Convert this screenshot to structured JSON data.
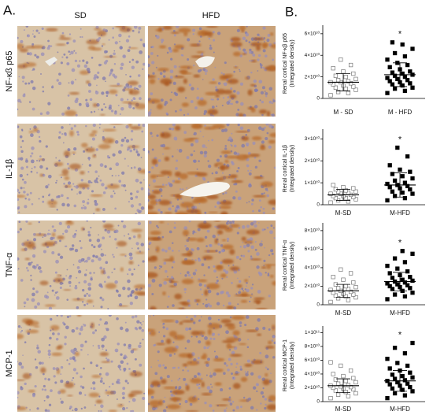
{
  "figure": {
    "panel_a": {
      "label": "A.",
      "columns": [
        "SD",
        "HFD"
      ],
      "rows": [
        "NF-κß p65",
        "IL-1β",
        "TNF-α",
        "MCP-1"
      ]
    },
    "panel_b_label": "B."
  },
  "chart_data": [
    {
      "type": "dot",
      "ylabel": [
        "Renal cortical NF-κβ p65",
        "(Integrated density)"
      ],
      "annotation": "*",
      "ylim": [
        0,
        65000000000.0
      ],
      "yticks": [
        0,
        {
          "value": 20000000000.0,
          "label": "2×10¹⁰"
        },
        {
          "value": 40000000000.0,
          "label": "4×10¹⁰"
        },
        {
          "value": 60000000000.0,
          "label": "6×10¹⁰"
        }
      ],
      "groups": [
        {
          "name": "M - SD",
          "style": "open",
          "mean": 15000000000.0,
          "sd": 8000000000.0,
          "values": [
            3000000000.0,
            5000000000.0,
            6000000000.0,
            8000000000.0,
            9000000000.0,
            10000000000.0,
            11000000000.0,
            12000000000.0,
            13000000000.0,
            14000000000.0,
            15000000000.0,
            15000000000.0,
            16000000000.0,
            17000000000.0,
            18000000000.0,
            20000000000.0,
            21000000000.0,
            23000000000.0,
            25000000000.0,
            28000000000.0,
            31000000000.0,
            36000000000.0
          ]
        },
        {
          "name": "M - HFD",
          "style": "filled",
          "mean": 22000000000.0,
          "sd": 11000000000.0,
          "values": [
            5000000000.0,
            7000000000.0,
            9000000000.0,
            10000000000.0,
            12000000000.0,
            13000000000.0,
            14000000000.0,
            15000000000.0,
            16000000000.0,
            17000000000.0,
            18000000000.0,
            19000000000.0,
            20000000000.0,
            21000000000.0,
            22000000000.0,
            23000000000.0,
            24000000000.0,
            25000000000.0,
            27000000000.0,
            29000000000.0,
            31000000000.0,
            33000000000.0,
            36000000000.0,
            39000000000.0,
            42000000000.0,
            46000000000.0,
            50000000000.0,
            52000000000.0
          ]
        }
      ]
    },
    {
      "type": "dot",
      "ylabel": [
        "Renal cortical IL-1β",
        "(Integrated density)"
      ],
      "annotation": "*",
      "ylim": [
        0,
        33000000000.0
      ],
      "yticks": [
        0,
        {
          "value": 10000000000.0,
          "label": "1×10¹⁰"
        },
        {
          "value": 20000000000.0,
          "label": "2×10¹⁰"
        },
        {
          "value": 30000000000.0,
          "label": "3×10¹⁰"
        }
      ],
      "groups": [
        {
          "name": "M-SD",
          "style": "open",
          "mean": 4500000000.0,
          "sd": 2500000000.0,
          "values": [
            1000000000.0,
            1500000000.0,
            2000000000.0,
            2500000000.0,
            3000000000.0,
            3000000000.0,
            3500000000.0,
            4000000000.0,
            4000000000.0,
            4500000000.0,
            5000000000.0,
            5000000000.0,
            5500000000.0,
            6000000000.0,
            6000000000.0,
            6500000000.0,
            7000000000.0,
            7500000000.0,
            8000000000.0,
            9000000000.0
          ]
        },
        {
          "name": "M-HFD",
          "style": "filled",
          "mean": 9000000000.0,
          "sd": 5500000000.0,
          "values": [
            2000000000.0,
            3000000000.0,
            4000000000.0,
            5000000000.0,
            5500000000.0,
            6000000000.0,
            7000000000.0,
            7500000000.0,
            8000000000.0,
            8500000000.0,
            9000000000.0,
            9500000000.0,
            10000000000.0,
            11000000000.0,
            12000000000.0,
            13000000000.0,
            14000000000.0,
            15000000000.0,
            16000000000.0,
            18000000000.0,
            22000000000.0,
            26000000000.0
          ]
        }
      ]
    },
    {
      "type": "dot",
      "ylabel": [
        "Renal cortical TNF-α",
        "(Integrated density)"
      ],
      "annotation": "*",
      "ylim": [
        0,
        85000000000.0
      ],
      "yticks": [
        0,
        {
          "value": 20000000000.0,
          "label": "2×10¹⁰"
        },
        {
          "value": 40000000000.0,
          "label": "4×10¹⁰"
        },
        {
          "value": 60000000000.0,
          "label": "6×10¹⁰"
        },
        {
          "value": 80000000000.0,
          "label": "8×10¹⁰"
        }
      ],
      "groups": [
        {
          "name": "M-SD",
          "style": "open",
          "mean": 15000000000.0,
          "sd": 7000000000.0,
          "values": [
            3000000000.0,
            5000000000.0,
            7000000000.0,
            8000000000.0,
            9000000000.0,
            10000000000.0,
            11000000000.0,
            12000000000.0,
            13000000000.0,
            14000000000.0,
            15000000000.0,
            16000000000.0,
            17000000000.0,
            18000000000.0,
            19000000000.0,
            20000000000.0,
            22000000000.0,
            24000000000.0,
            27000000000.0,
            30000000000.0,
            34000000000.0,
            38000000000.0
          ]
        },
        {
          "name": "M-HFD",
          "style": "filled",
          "mean": 25000000000.0,
          "sd": 10000000000.0,
          "values": [
            6000000000.0,
            9000000000.0,
            11000000000.0,
            13000000000.0,
            15000000000.0,
            17000000000.0,
            18000000000.0,
            19000000000.0,
            20000000000.0,
            21000000000.0,
            22000000000.0,
            23000000000.0,
            24000000000.0,
            25000000000.0,
            26000000000.0,
            27000000000.0,
            29000000000.0,
            30000000000.0,
            32000000000.0,
            34000000000.0,
            36000000000.0,
            39000000000.0,
            42000000000.0,
            46000000000.0,
            50000000000.0,
            55000000000.0,
            58000000000.0
          ]
        }
      ]
    },
    {
      "type": "dot",
      "ylabel": [
        "Renal cortical MCP-1",
        "(Integrated density)"
      ],
      "annotation": "*",
      "ylim": [
        0,
        105000000000.0
      ],
      "yticks": [
        0,
        {
          "value": 20000000000.0,
          "label": "2×10¹⁰"
        },
        {
          "value": 40000000000.0,
          "label": "4×10¹⁰"
        },
        {
          "value": 60000000000.0,
          "label": "6×10¹⁰"
        },
        {
          "value": 80000000000.0,
          "label": "8×10¹⁰"
        },
        {
          "value": 100000000000.0,
          "label": "1×10¹¹"
        }
      ],
      "groups": [
        {
          "name": "M-SD",
          "style": "open",
          "mean": 23000000000.0,
          "sd": 10000000000.0,
          "values": [
            5000000000.0,
            8000000000.0,
            10000000000.0,
            12000000000.0,
            14000000000.0,
            16000000000.0,
            18000000000.0,
            19000000000.0,
            20000000000.0,
            21000000000.0,
            22000000000.0,
            23000000000.0,
            24000000000.0,
            26000000000.0,
            28000000000.0,
            30000000000.0,
            32000000000.0,
            34000000000.0,
            37000000000.0,
            40000000000.0,
            45000000000.0,
            52000000000.0,
            57000000000.0
          ]
        },
        {
          "name": "M-HFD",
          "style": "filled",
          "mean": 30000000000.0,
          "sd": 15000000000.0,
          "values": [
            5000000000.0,
            9000000000.0,
            12000000000.0,
            15000000000.0,
            17000000000.0,
            19000000000.0,
            21000000000.0,
            23000000000.0,
            25000000000.0,
            26000000000.0,
            28000000000.0,
            30000000000.0,
            31000000000.0,
            33000000000.0,
            35000000000.0,
            37000000000.0,
            39000000000.0,
            42000000000.0,
            45000000000.0,
            48000000000.0,
            52000000000.0,
            56000000000.0,
            62000000000.0,
            70000000000.0,
            78000000000.0,
            85000000000.0
          ]
        }
      ]
    }
  ]
}
